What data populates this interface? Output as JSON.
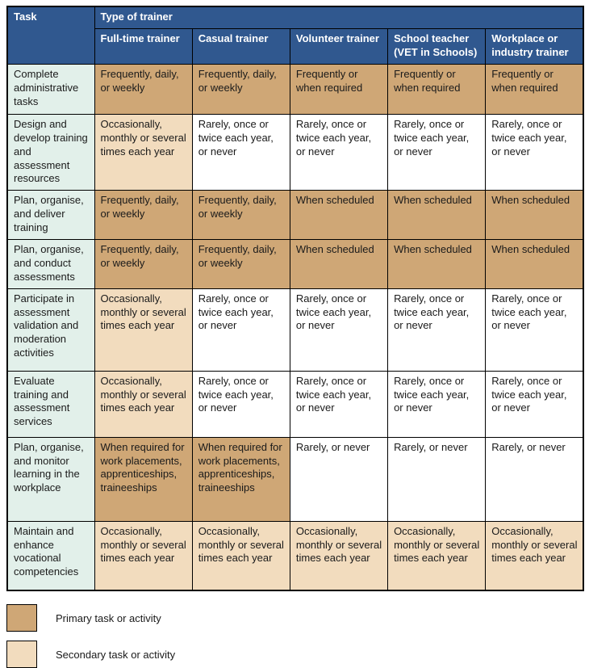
{
  "table": {
    "corner_header": "Task",
    "group_header": "Type of trainer",
    "columns": [
      "Full-time trainer",
      "Casual trainer",
      "Volunteer trainer",
      "School teacher (VET in Schools)",
      "Workplace or industry trainer"
    ],
    "rows": [
      {
        "task": "Complete administrative tasks",
        "cells": [
          {
            "text": "Frequently, daily, or weekly",
            "type": "primary"
          },
          {
            "text": "Frequently, daily, or weekly",
            "type": "primary"
          },
          {
            "text": "Frequently or when required",
            "type": "primary"
          },
          {
            "text": "Frequently or when required",
            "type": "primary"
          },
          {
            "text": "Frequently or when required",
            "type": "primary"
          }
        ]
      },
      {
        "task": "Design and develop training and assessment resources",
        "cells": [
          {
            "text": "Occasionally, monthly or several times each year",
            "type": "secondary"
          },
          {
            "text": "Rarely, once or twice each year, or never",
            "type": "none"
          },
          {
            "text": "Rarely, once or twice each year, or never",
            "type": "none"
          },
          {
            "text": "Rarely, once or twice each year, or never",
            "type": "none"
          },
          {
            "text": "Rarely, once or twice each year, or never",
            "type": "none"
          }
        ]
      },
      {
        "task": "Plan, organise, and deliver training",
        "cells": [
          {
            "text": "Frequently, daily, or weekly",
            "type": "primary"
          },
          {
            "text": "Frequently, daily, or weekly",
            "type": "primary"
          },
          {
            "text": "When scheduled",
            "type": "primary"
          },
          {
            "text": "When scheduled",
            "type": "primary"
          },
          {
            "text": "When scheduled",
            "type": "primary"
          }
        ]
      },
      {
        "task": "Plan, organise, and conduct assessments",
        "cells": [
          {
            "text": "Frequently, daily, or weekly",
            "type": "primary"
          },
          {
            "text": "Frequently, daily, or weekly",
            "type": "primary"
          },
          {
            "text": "When scheduled",
            "type": "primary"
          },
          {
            "text": "When scheduled",
            "type": "primary"
          },
          {
            "text": "When scheduled",
            "type": "primary"
          }
        ]
      },
      {
        "task": "Participate in assessment validation and moderation activities",
        "cells": [
          {
            "text": "Occasionally, monthly or several times each year",
            "type": "secondary"
          },
          {
            "text": "Rarely, once or twice each year, or never",
            "type": "none"
          },
          {
            "text": "Rarely, once or twice each year, or never",
            "type": "none"
          },
          {
            "text": "Rarely, once or twice each year, or never",
            "type": "none"
          },
          {
            "text": "Rarely, once or twice each year, or never",
            "type": "none"
          }
        ]
      },
      {
        "task": "Evaluate training and assessment services",
        "cells": [
          {
            "text": "Occasionally, monthly or several times each year",
            "type": "secondary"
          },
          {
            "text": "Rarely, once or twice each year, or never",
            "type": "none"
          },
          {
            "text": "Rarely, once or twice each year, or never",
            "type": "none"
          },
          {
            "text": "Rarely, once or twice each year, or never",
            "type": "none"
          },
          {
            "text": "Rarely, once or twice each year, or never",
            "type": "none"
          }
        ]
      },
      {
        "task": "Plan, organise, and monitor learning in the workplace",
        "cells": [
          {
            "text": "When required for work placements, apprenticeships, traineeships",
            "type": "primary"
          },
          {
            "text": "When required for work placements, apprenticeships, traineeships",
            "type": "primary"
          },
          {
            "text": "Rarely, or never",
            "type": "none"
          },
          {
            "text": "Rarely, or never",
            "type": "none"
          },
          {
            "text": "Rarely, or never",
            "type": "none"
          }
        ]
      },
      {
        "task": "Maintain and enhance vocational competencies",
        "cells": [
          {
            "text": "Occasionally, monthly or several times each year",
            "type": "secondary"
          },
          {
            "text": "Occasionally, monthly or several times each year",
            "type": "secondary"
          },
          {
            "text": "Occasionally, monthly or several times each year",
            "type": "secondary"
          },
          {
            "text": "Occasionally, monthly or several times each year",
            "type": "secondary"
          },
          {
            "text": "Occasionally, monthly or several times each year",
            "type": "secondary"
          }
        ]
      }
    ]
  },
  "legend": {
    "items": [
      {
        "label": "Primary task or activity",
        "type": "primary"
      },
      {
        "label": "Secondary task or activity",
        "type": "secondary"
      }
    ]
  },
  "colors": {
    "header_bg": "#30588F",
    "header_text": "#FFFFFF",
    "task_bg": "#E2F0EA",
    "primary": "#CFA776",
    "secondary": "#F2DCBE",
    "cell_none": "#FFFFFF",
    "border": "#000000",
    "text": "#1A1A1A"
  }
}
